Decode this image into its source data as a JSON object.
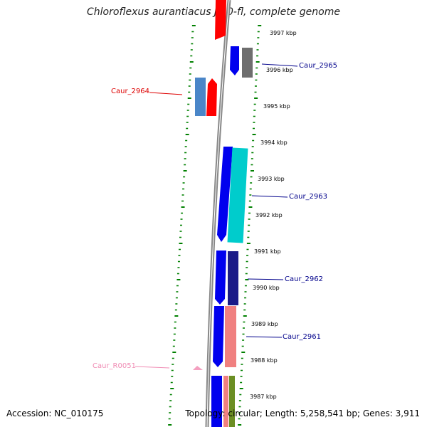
{
  "title": "Chloroflexus aurantiacus J-10-fl, complete genome",
  "footer": {
    "accession": "Accession: NC_010175",
    "topology": "Topology: circular; Length: 5,258,541 bp; Genes: 3,911"
  },
  "ruler": [
    "3997 kbp",
    "3996 kbp",
    "3995 kbp",
    "3994 kbp",
    "3993 kbp",
    "3992 kbp",
    "3991 kbp",
    "3990 kbp",
    "3989 kbp",
    "3988 kbp",
    "3987 kbp"
  ],
  "gene_labels": [
    "Caur_2965",
    "Caur_2964",
    "Caur_2963",
    "Caur_2962",
    "Caur_2961",
    "Caur_R0051"
  ],
  "colors": {
    "blue": "#0000ee",
    "red": "#ff0000",
    "gray": "#6e6e6e",
    "steelblue": "#4a86c8",
    "cyan": "#00cccc",
    "navy": "#1a1a88",
    "pink": "#f08080",
    "olive": "#6b8e23",
    "light_pink": "#f4a0c0",
    "backbone": "#888888",
    "tick_green": "#008000",
    "label_blue": "#00008b",
    "label_red": "#dd0000",
    "label_pink": "#f08cb4"
  }
}
